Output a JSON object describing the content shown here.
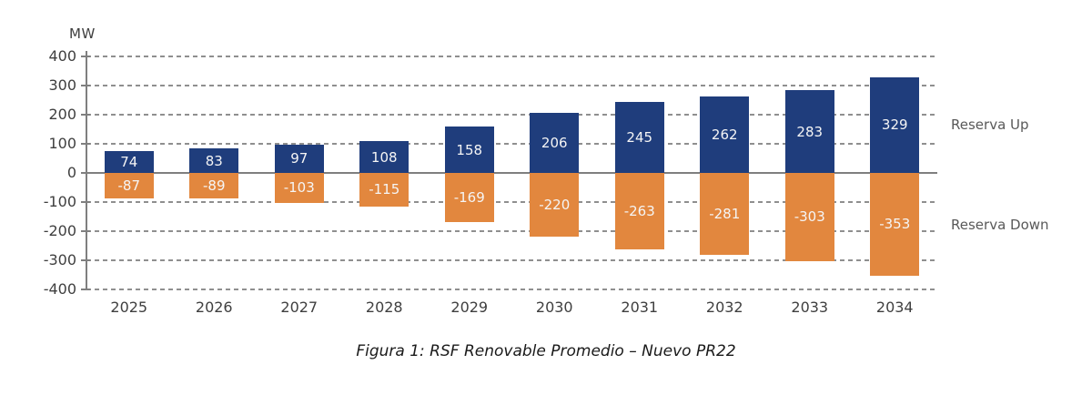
{
  "chart_data": {
    "type": "bar",
    "unit_label": "MW",
    "categories": [
      "2025",
      "2026",
      "2027",
      "2028",
      "2029",
      "2030",
      "2031",
      "2032",
      "2033",
      "2034"
    ],
    "series": [
      {
        "name": "Reserva Up",
        "color": "#1f3d7c",
        "values": [
          74,
          83,
          97,
          108,
          158,
          206,
          245,
          262,
          283,
          329
        ]
      },
      {
        "name": "Reserva Down",
        "color": "#e2873e",
        "values": [
          -87,
          -89,
          -103,
          -115,
          -169,
          -220,
          -263,
          -281,
          -303,
          -353
        ]
      }
    ],
    "ylim": [
      -400,
      400
    ],
    "ytick_step": 100,
    "grid": "dashed-horizontal",
    "zero_line": "solid",
    "legend_position": "right",
    "data_label_color": "#ffffff"
  },
  "caption": "Figura 1: RSF Renovable Promedio – Nuevo PR22"
}
